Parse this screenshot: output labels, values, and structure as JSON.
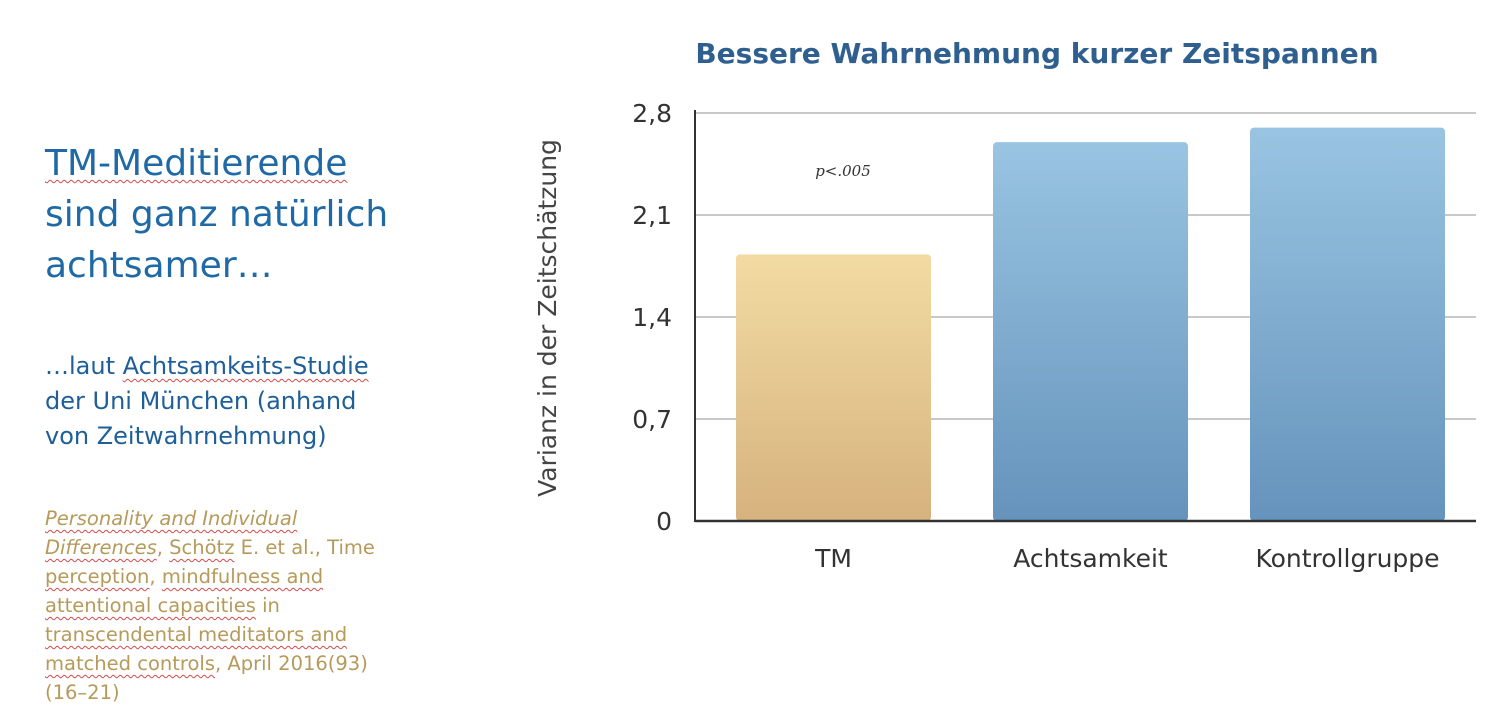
{
  "headline": {
    "line1": "TM-Meditierende",
    "line2": "sind ganz natürlich",
    "line3": "achtsamer…"
  },
  "subtext": {
    "line1_pre": "…laut ",
    "line1_link": "Achtsamkeits-Studie",
    "line2": "der Uni München (anhand",
    "line3": "von Zeitwahrnehmung)"
  },
  "citation": {
    "l1": "Personality and Individual",
    "l2a": "Differences",
    "l2b": ", ",
    "l2c": "Schötz",
    "l2d": " E. et al., Time",
    "l3a": "perception",
    "l3b": ", ",
    "l3c": "mindfulness and",
    "l4a": "attentional capacities",
    "l4b": " in",
    "l5a": "transcendental meditators and",
    "l6a": "matched controls",
    "l6b": ", April 2016(93)",
    "l7": "(16–21)"
  },
  "chart_data": {
    "type": "bar",
    "title": "Bessere Wahrnehmung kurzer Zeitspannen",
    "ylabel": "Varianz in der Zeitschätzung",
    "xlabel": "",
    "categories": [
      "TM",
      "Achtsamkeit",
      "Kontrollgruppe"
    ],
    "values": [
      1.83,
      2.6,
      2.7
    ],
    "ylim": [
      0,
      2.8
    ],
    "yticks": [
      0,
      0.7,
      1.4,
      2.1,
      2.8
    ],
    "ytick_labels": [
      "0",
      "0,7",
      "1,4",
      "2,1",
      "2,8"
    ],
    "annotation": "p<.005",
    "grid": true,
    "colors": {
      "TM": [
        "#f2dba3",
        "#d6b27e"
      ],
      "Achtsamkeit": [
        "#99c4e2",
        "#6593bb"
      ],
      "Kontrollgruppe": [
        "#99c4e2",
        "#6593bb"
      ],
      "title": "#2f5f8f"
    }
  }
}
